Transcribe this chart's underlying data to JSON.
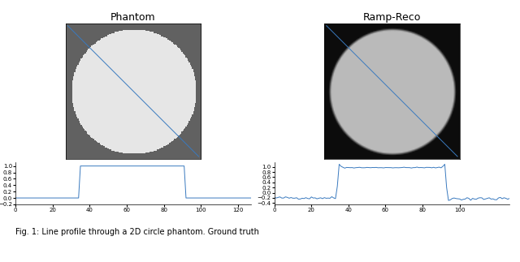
{
  "phantom_title": "Phantom",
  "ramp_title": "Ramp-Reco",
  "caption": "Fig. 1: Line profile through a 2D circle phantom. Ground truth",
  "phantom_bg_color": "#636363",
  "phantom_circle_color": "#e2e2e2",
  "ramp_bg_color": "#111111",
  "ramp_circle_color": "#bbbbbb",
  "ramp_circle_blur": true,
  "line_color": "#3a7abf",
  "n_points": 128,
  "phantom_ylim": [
    -0.15,
    1.12
  ],
  "phantom_yticks": [
    1.0,
    0.8,
    0.6,
    0.4,
    0.2,
    0.0,
    -0.2
  ],
  "phantom_xticks": [
    0,
    20,
    40,
    60,
    80,
    100,
    120
  ],
  "ramp_ylim": [
    -0.45,
    1.18
  ],
  "ramp_yticks": [
    1.0,
    0.8,
    0.6,
    0.4,
    0.2,
    0.0,
    -0.2,
    -0.4
  ],
  "ramp_xticks": [
    0,
    20,
    40,
    60,
    80,
    100
  ],
  "title_fontsize": 9,
  "tick_fontsize": 5,
  "img_size": 128
}
